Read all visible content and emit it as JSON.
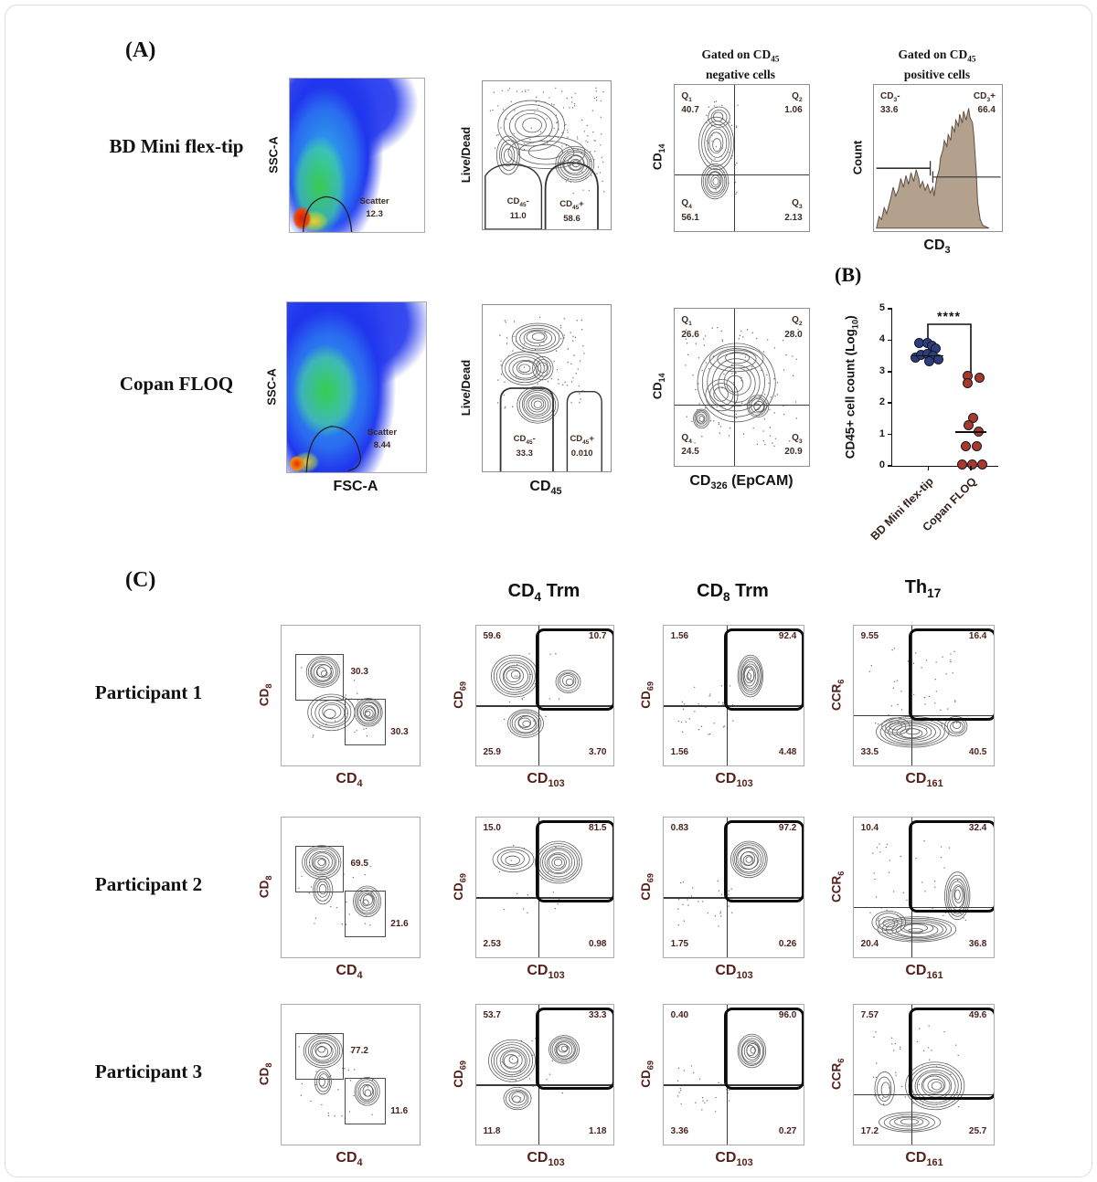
{
  "figure": {
    "panel_a_label": "(A)",
    "panel_b_label": "(B)",
    "panel_c_label": "(C)"
  },
  "panelA": {
    "rows": [
      {
        "name": "BD Mini flex-tip",
        "scatter": {
          "ylabel": "SSC-A",
          "gate_label": "Scatter",
          "gate_value": "12.3"
        },
        "viability": {
          "ylabel": "Live/Dead",
          "neg_label": "CD~45~-",
          "neg_value": "11.0",
          "pos_label": "CD~45~+",
          "pos_value": "58.6"
        },
        "quadrant": {
          "title1": "Gated on CD~45~",
          "title2": "negative cells",
          "ylabel": "CD~14~",
          "q1_label": "Q~1~",
          "q1": "40.7",
          "q2_label": "Q~2~",
          "q2": "1.06",
          "q3_label": "Q~3~",
          "q3": "2.13",
          "q4_label": "Q~4~",
          "q4": "56.1"
        },
        "histogram": {
          "title1": "Gated on CD~45~",
          "title2": "positive cells",
          "ylabel": "Count",
          "xlabel": "CD~3~",
          "neg_label": "CD~3~-",
          "neg_value": "33.6",
          "pos_label": "CD~3~+",
          "pos_value": "66.4"
        }
      },
      {
        "name": "Copan FLOQ",
        "scatter": {
          "ylabel": "SSC-A",
          "xlabel": "FSC-A",
          "gate_label": "Scatter",
          "gate_value": "8.44"
        },
        "viability": {
          "ylabel": "Live/Dead",
          "xlabel": "CD~45~",
          "neg_label": "CD~45~-",
          "neg_value": "33.3",
          "pos_label": "CD~45~+",
          "pos_value": "0.010"
        },
        "quadrant": {
          "ylabel": "CD~14~",
          "xlabel": "CD~326~ (EpCAM)",
          "q1_label": "Q~1~",
          "q1": "26.6",
          "q2_label": "Q~2~",
          "q2": "28.0",
          "q3_label": "Q~3~",
          "q3": "20.9",
          "q4_label": "Q~4~",
          "q4": "24.5"
        }
      }
    ]
  },
  "chart_data": {
    "type": "scatter",
    "title": "",
    "ylabel": "CD45+ cell count (Log~10~)",
    "ylim": [
      0,
      5
    ],
    "yticks": [
      0,
      1,
      2,
      3,
      4,
      5
    ],
    "significance": "****",
    "groups": [
      {
        "label": "BD Mini flex-tip",
        "dot_color": "#2c3f7c",
        "median": 3.5,
        "points": [
          [
            -0.35,
            3.92
          ],
          [
            -0.05,
            3.9
          ],
          [
            0.15,
            3.82
          ],
          [
            0.3,
            3.74
          ],
          [
            -0.5,
            3.45
          ],
          [
            -0.28,
            3.52
          ],
          [
            -0.05,
            3.56
          ],
          [
            0.18,
            3.5
          ],
          [
            0.38,
            3.38
          ],
          [
            0.05,
            3.34
          ]
        ]
      },
      {
        "label": "Copan FLOQ",
        "dot_color": "#a83a2b",
        "median": 1.08,
        "points": [
          [
            -0.12,
            2.87
          ],
          [
            -0.12,
            2.63
          ],
          [
            0.35,
            2.8
          ],
          [
            0.1,
            1.52
          ],
          [
            -0.1,
            1.3
          ],
          [
            0.3,
            1.1
          ],
          [
            -0.2,
            0.62
          ],
          [
            0.25,
            0.62
          ],
          [
            -0.35,
            0.04
          ],
          [
            0.05,
            0.04
          ],
          [
            0.45,
            0.04
          ]
        ]
      }
    ]
  },
  "panelC": {
    "headers": [
      "CD~4~ Trm",
      "CD~8~ Trm",
      "Th~17~"
    ],
    "rows": [
      {
        "name": "Participant 1",
        "gating": {
          "ylabel": "CD~8~",
          "xlabel": "CD~4~",
          "cd8_value": "30.3",
          "cd4_value": "30.3"
        },
        "cd4trm": {
          "ylabel": "CD~69~",
          "xlabel": "CD~103~",
          "tl": "59.6",
          "tr": "10.7",
          "bl": "25.9",
          "br": "3.70"
        },
        "cd8trm": {
          "ylabel": "CD~69~",
          "xlabel": "CD~103~",
          "tl": "1.56",
          "tr": "92.4",
          "bl": "1.56",
          "br": "4.48"
        },
        "th17": {
          "ylabel": "CCR~6~",
          "xlabel": "CD~161~",
          "tl": "9.55",
          "tr": "16.4",
          "bl": "33.5",
          "br": "40.5"
        }
      },
      {
        "name": "Participant 2",
        "gating": {
          "ylabel": "CD~8~",
          "xlabel": "CD~4~",
          "cd8_value": "69.5",
          "cd4_value": "21.6"
        },
        "cd4trm": {
          "ylabel": "CD~69~",
          "xlabel": "CD~103~",
          "tl": "15.0",
          "tr": "81.5",
          "bl": "2.53",
          "br": "0.98"
        },
        "cd8trm": {
          "ylabel": "CD~69~",
          "xlabel": "CD~103~",
          "tl": "0.83",
          "tr": "97.2",
          "bl": "1.75",
          "br": "0.26"
        },
        "th17": {
          "ylabel": "CCR~6~",
          "xlabel": "CD~161~",
          "tl": "10.4",
          "tr": "32.4",
          "bl": "20.4",
          "br": "36.8"
        }
      },
      {
        "name": "Participant 3",
        "gating": {
          "ylabel": "CD~8~",
          "xlabel": "CD~4~",
          "cd8_value": "77.2",
          "cd4_value": "11.6"
        },
        "cd4trm": {
          "ylabel": "CD~69~",
          "xlabel": "CD~103~",
          "tl": "53.7",
          "tr": "33.3",
          "bl": "11.8",
          "br": "1.18"
        },
        "cd8trm": {
          "ylabel": "CD~69~",
          "xlabel": "CD~103~",
          "tl": "0.40",
          "tr": "96.0",
          "bl": "3.36",
          "br": "0.27"
        },
        "th17": {
          "ylabel": "CCR~6~",
          "xlabel": "CD~161~",
          "tl": "7.57",
          "tr": "49.6",
          "bl": "17.2",
          "br": "25.7"
        }
      }
    ]
  }
}
